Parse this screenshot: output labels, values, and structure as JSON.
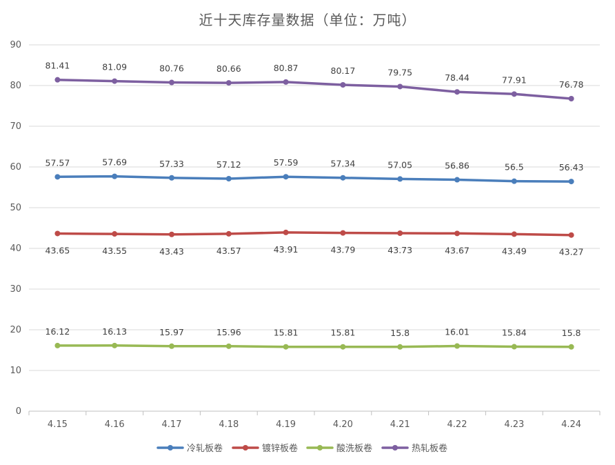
{
  "chart_data": {
    "type": "line",
    "title": "近十天库存量数据（单位：万吨）",
    "xlabel": "",
    "ylabel": "",
    "categories": [
      "4.15",
      "4.16",
      "4.17",
      "4.18",
      "4.19",
      "4.20",
      "4.21",
      "4.22",
      "4.23",
      "4.24"
    ],
    "ylim": [
      0,
      90
    ],
    "yticks": [
      0,
      10,
      20,
      30,
      40,
      50,
      60,
      70,
      80,
      90
    ],
    "grid": true,
    "legend_position": "bottom",
    "series": [
      {
        "name": "冷轧板卷",
        "color": "#4a7ebb",
        "label_position": "above",
        "values": [
          57.57,
          57.69,
          57.33,
          57.12,
          57.59,
          57.34,
          57.05,
          56.86,
          56.5,
          56.43
        ]
      },
      {
        "name": "镀锌板卷",
        "color": "#be4b48",
        "label_position": "below",
        "values": [
          43.65,
          43.55,
          43.43,
          43.57,
          43.91,
          43.79,
          43.73,
          43.67,
          43.49,
          43.27
        ]
      },
      {
        "name": "酸洗板卷",
        "color": "#98b954",
        "label_position": "above",
        "values": [
          16.12,
          16.13,
          15.97,
          15.96,
          15.81,
          15.81,
          15.8,
          16.01,
          15.84,
          15.8
        ]
      },
      {
        "name": "热轧板卷",
        "color": "#7d5fa0",
        "label_position": "above",
        "values": [
          81.41,
          81.09,
          80.76,
          80.66,
          80.87,
          80.17,
          79.75,
          78.44,
          77.91,
          76.78
        ]
      }
    ]
  }
}
